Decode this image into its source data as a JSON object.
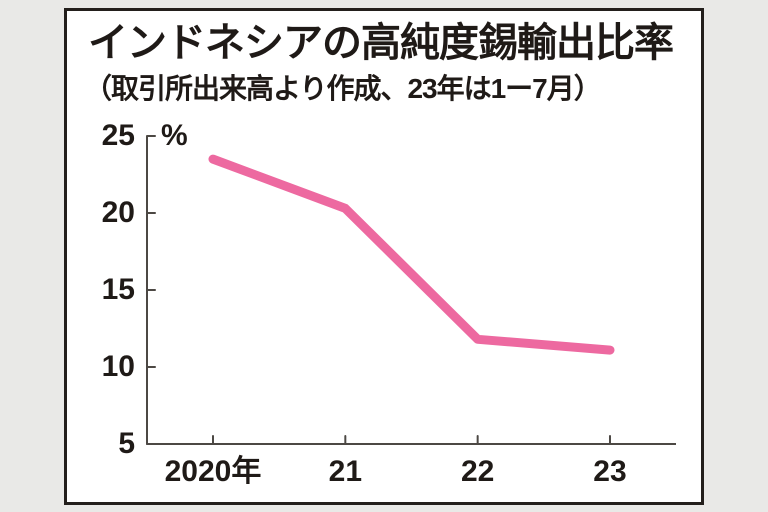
{
  "page": {
    "background_color": "#e9e9e7"
  },
  "card": {
    "background_color": "#ffffff",
    "border_color": "#231f1c"
  },
  "chart_data": {
    "type": "line",
    "title": "インドネシアの高純度錫輸出比率",
    "subtitle": "（取引所出来高より作成、23年は1ー7月）",
    "unit_label": "%",
    "categories": [
      "2020年",
      "21",
      "22",
      "23"
    ],
    "series": [
      {
        "color": "#ed69a0",
        "values": [
          23.5,
          20.3,
          11.8,
          11.1
        ]
      }
    ],
    "ylim": [
      5,
      25
    ],
    "yticks": [
      25,
      20,
      15,
      10,
      5
    ],
    "xlabel": "",
    "ylabel": "%",
    "grid": false,
    "legend": false,
    "axis_color": "#4c4844",
    "text_color": "#1f1a17"
  }
}
